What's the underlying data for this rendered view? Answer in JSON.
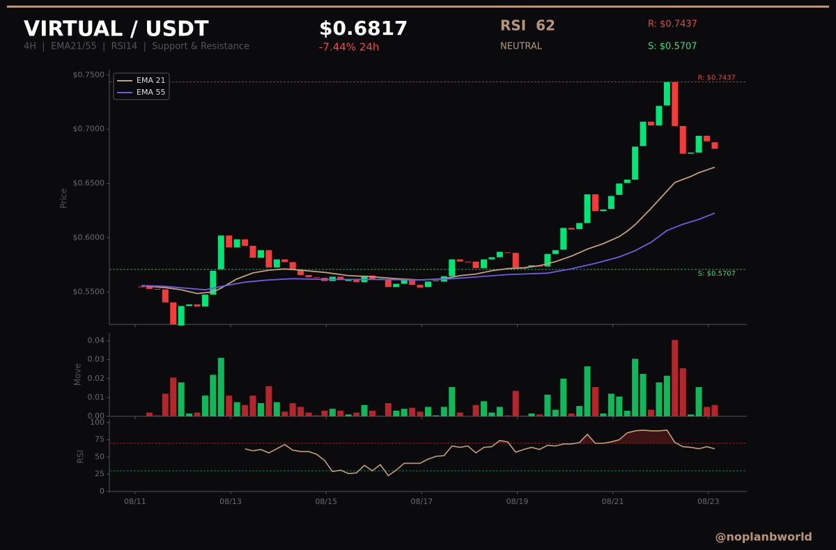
{
  "header": {
    "title": "VIRTUAL / USDT",
    "subtitle": "4H  |  EMA21/55  |  RSI14  |  Support & Resistance",
    "price": "$0.6817",
    "change": "-7.44% 24h",
    "rsi": "RSI  62",
    "rsi_state": "NEUTRAL",
    "resistance": "R: $0.7437",
    "support": "S: $0.5707"
  },
  "watermark": "@noplanbworld",
  "chart_data": [
    {
      "type": "candlestick",
      "ylabel": "Price",
      "categories": [
        null,
        null,
        null,
        null,
        null,
        null,
        null,
        null,
        null,
        null,
        null,
        null,
        null,
        null,
        null,
        null,
        null,
        null,
        null,
        null,
        null,
        null,
        null,
        null,
        null,
        null,
        null,
        null,
        null,
        null,
        null,
        null,
        null,
        null,
        null,
        null,
        null,
        null,
        null,
        null,
        null,
        null,
        null,
        null,
        null,
        null,
        null,
        null,
        null,
        null,
        null,
        null,
        null,
        null,
        null,
        null,
        null,
        null,
        null,
        null,
        null,
        null,
        null,
        null,
        null,
        null,
        null,
        null,
        null,
        null,
        null,
        null,
        null
      ],
      "open": [
        0.555,
        0.5548,
        0.5528,
        0.5523,
        0.5403,
        0.519,
        0.537,
        0.5385,
        0.5365,
        0.5475,
        0.571,
        0.602,
        0.591,
        0.5985,
        0.5925,
        0.5815,
        0.5885,
        0.5725,
        0.58,
        0.5775,
        0.5705,
        0.5655,
        0.5635,
        0.563,
        0.56,
        0.564,
        0.56,
        0.561,
        0.559,
        0.565,
        0.562,
        0.5615,
        0.5545,
        0.5575,
        0.561,
        0.5565,
        0.5545,
        0.56,
        0.5595,
        0.5645,
        0.58,
        0.578,
        0.578,
        0.572,
        0.58,
        0.582,
        0.5865,
        0.586,
        0.572,
        0.573,
        0.5745,
        0.5735,
        0.585,
        0.589,
        0.609,
        0.608,
        0.6135,
        0.64,
        0.6245,
        0.6265,
        0.6395,
        0.6505,
        0.6535,
        0.6845,
        0.707,
        0.7035,
        0.722,
        0.7435,
        0.703,
        0.6775,
        0.6785,
        0.694,
        0.688
      ],
      "close": [
        0.5548,
        0.5528,
        0.5523,
        0.5403,
        0.5198,
        0.537,
        0.5385,
        0.5365,
        0.5475,
        0.5695,
        0.602,
        0.591,
        0.5985,
        0.5925,
        0.5815,
        0.5885,
        0.5725,
        0.58,
        0.5775,
        0.5705,
        0.5655,
        0.5635,
        0.563,
        0.56,
        0.564,
        0.561,
        0.561,
        0.559,
        0.565,
        0.562,
        0.5622,
        0.5545,
        0.5575,
        0.5615,
        0.5565,
        0.554,
        0.5595,
        0.5605,
        0.5645,
        0.58,
        0.578,
        0.5778,
        0.572,
        0.58,
        0.582,
        0.587,
        0.586,
        0.5725,
        0.5722,
        0.5745,
        0.5735,
        0.585,
        0.5885,
        0.609,
        0.6075,
        0.6135,
        0.64,
        0.6245,
        0.626,
        0.6385,
        0.65,
        0.6535,
        0.684,
        0.707,
        0.7035,
        0.7215,
        0.7435,
        0.703,
        0.6775,
        0.6785,
        0.694,
        0.689,
        0.682
      ],
      "up_color": "#00e676",
      "down_color": "#f23c3c",
      "series": [
        {
          "name": "EMA 21",
          "color": "#c4a07a",
          "x": [
            0,
            3,
            5,
            7,
            9,
            10,
            12,
            14,
            16,
            18,
            20,
            23,
            26,
            29,
            32,
            35,
            38,
            40,
            42,
            44,
            46,
            48,
            50,
            52,
            54,
            56,
            58,
            60,
            61,
            62,
            64,
            66,
            67,
            69,
            70,
            72
          ],
          "values": [
            0.5558,
            0.5539,
            0.552,
            0.5485,
            0.55,
            0.5535,
            0.562,
            0.5675,
            0.57,
            0.5712,
            0.57,
            0.568,
            0.565,
            0.564,
            0.5622,
            0.561,
            0.5622,
            0.565,
            0.5665,
            0.5695,
            0.5715,
            0.5722,
            0.5742,
            0.578,
            0.583,
            0.5895,
            0.5945,
            0.601,
            0.606,
            0.612,
            0.627,
            0.643,
            0.651,
            0.6565,
            0.66,
            0.665
          ]
        },
        {
          "name": "EMA 55",
          "color": "#6f5ce0",
          "x": [
            0,
            3,
            5,
            8,
            10,
            13,
            16,
            19,
            23,
            29,
            35,
            39,
            43,
            46,
            51,
            54,
            57,
            60,
            62,
            64,
            66,
            68,
            70,
            72
          ],
          "values": [
            0.5558,
            0.5551,
            0.5538,
            0.552,
            0.555,
            0.559,
            0.561,
            0.5622,
            0.5615,
            0.5615,
            0.561,
            0.5622,
            0.5643,
            0.566,
            0.5673,
            0.5713,
            0.5764,
            0.5822,
            0.588,
            0.5957,
            0.6066,
            0.6124,
            0.6169,
            0.6227
          ]
        }
      ],
      "levels": [
        {
          "name": "R",
          "value": 0.7437,
          "label": "R: $0.7437",
          "color": "#e04a4a"
        },
        {
          "name": "S",
          "value": 0.5707,
          "label": "S: $0.5707",
          "color": "#2ee07a"
        }
      ],
      "ylim": [
        0.52,
        0.755
      ],
      "yticks": [
        {
          "value": 0.55,
          "label": "$0.5500"
        },
        {
          "value": 0.6,
          "label": "$0.6000"
        },
        {
          "value": 0.65,
          "label": "$0.6500"
        },
        {
          "value": 0.7,
          "label": "$0.7000"
        },
        {
          "value": 0.75,
          "label": "$0.7500"
        }
      ],
      "legend": "upper left"
    },
    {
      "type": "bar",
      "ylabel": "Move",
      "values": [
        0.0002,
        0.002,
        0.0005,
        0.012,
        0.0205,
        0.018,
        0.0015,
        0.002,
        0.011,
        0.022,
        0.031,
        0.011,
        0.0075,
        0.006,
        0.011,
        0.007,
        0.016,
        0.0075,
        0.0025,
        0.007,
        0.005,
        0.002,
        0.0005,
        0.003,
        0.004,
        0.003,
        0.001,
        0.002,
        0.006,
        0.003,
        0.0002,
        0.007,
        0.003,
        0.004,
        0.0045,
        0.0025,
        0.005,
        0.0005,
        0.005,
        0.0155,
        0.002,
        0.0002,
        0.006,
        0.008,
        0.002,
        0.005,
        0.0005,
        0.0135,
        0.0002,
        0.0015,
        0.001,
        0.0115,
        0.0035,
        0.02,
        0.0015,
        0.0055,
        0.0265,
        0.0155,
        0.0015,
        0.012,
        0.0105,
        0.003,
        0.0305,
        0.0225,
        0.0035,
        0.018,
        0.0215,
        0.0405,
        0.0255,
        0.001,
        0.0155,
        0.005,
        0.006
      ],
      "up_color": "#10b85a",
      "down_color": "#b3262b",
      "ylim": [
        0,
        0.0443
      ],
      "yticks": [
        {
          "value": 0,
          "label": "0.00"
        },
        0.01,
        0.02,
        0.03,
        0.04
      ]
    },
    {
      "type": "line",
      "ylabel": "RSI",
      "color": "#c4a07a",
      "values": [
        null,
        null,
        null,
        null,
        null,
        null,
        null,
        null,
        null,
        null,
        null,
        null,
        null,
        62,
        59,
        61,
        56,
        62,
        68,
        60,
        58,
        58,
        54,
        45,
        29,
        31,
        26,
        27,
        38,
        30,
        39,
        23,
        31,
        41,
        41,
        41,
        47,
        51,
        52,
        66,
        64,
        66,
        56,
        64,
        65,
        74,
        72,
        57,
        61,
        64,
        61,
        67,
        66,
        69,
        69,
        71,
        83,
        70,
        70,
        72,
        75,
        85,
        88,
        89,
        88,
        88,
        89,
        71,
        65,
        64,
        62,
        65,
        62
      ],
      "levels": [
        {
          "value": 70,
          "color": "#a83535"
        },
        {
          "value": 30,
          "color": "#1f9a5a"
        }
      ],
      "ylim": [
        0,
        105
      ],
      "yticks": [
        0,
        25,
        50,
        75,
        100
      ],
      "xticks": [
        {
          "value": -0.8,
          "label": "08/11"
        },
        {
          "value": 11.2,
          "label": "08/13"
        },
        {
          "value": 23.2,
          "label": "08/15"
        },
        {
          "value": 35.2,
          "label": "08/17"
        },
        {
          "value": 47.2,
          "label": "08/19"
        },
        {
          "value": 59.2,
          "label": "08/21"
        },
        {
          "value": 71.2,
          "label": "08/23"
        }
      ]
    }
  ]
}
